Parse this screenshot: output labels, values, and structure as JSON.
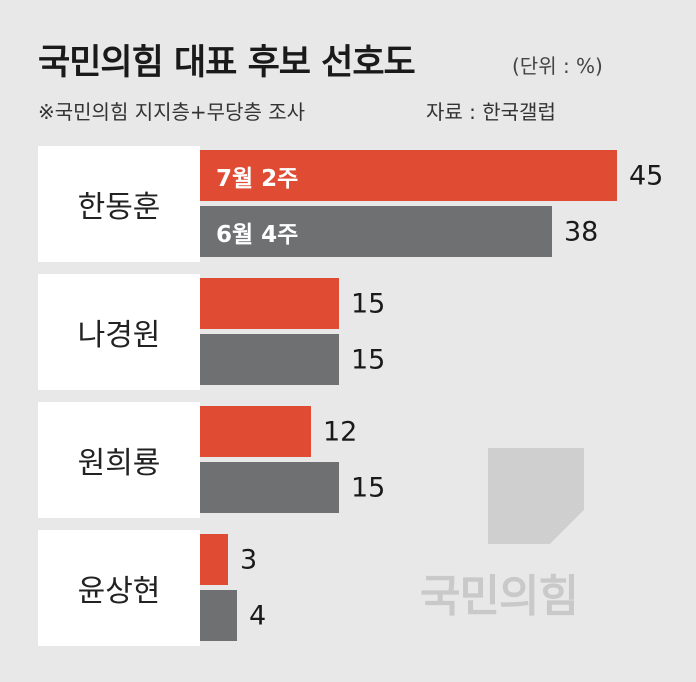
{
  "title": "국민의힘 대표 후보 선호도",
  "unit": "(단위 : %)",
  "note": "※국민의힘 지지층+무당층 조사",
  "source": "자료 : 한국갤럽",
  "watermark": "국민의힘",
  "colors": {
    "current": "#e04b33",
    "previous": "#6f7072"
  },
  "chart_data": {
    "type": "bar",
    "orientation": "horizontal",
    "title": "국민의힘 대표 후보 선호도",
    "categories": [
      "한동훈",
      "나경원",
      "원희룡",
      "윤상현"
    ],
    "series": [
      {
        "name": "7월 2주",
        "values": [
          45,
          15,
          12,
          3
        ]
      },
      {
        "name": "6월 4주",
        "values": [
          38,
          15,
          15,
          4
        ]
      }
    ],
    "xlim": [
      0,
      50
    ],
    "grid": false
  }
}
